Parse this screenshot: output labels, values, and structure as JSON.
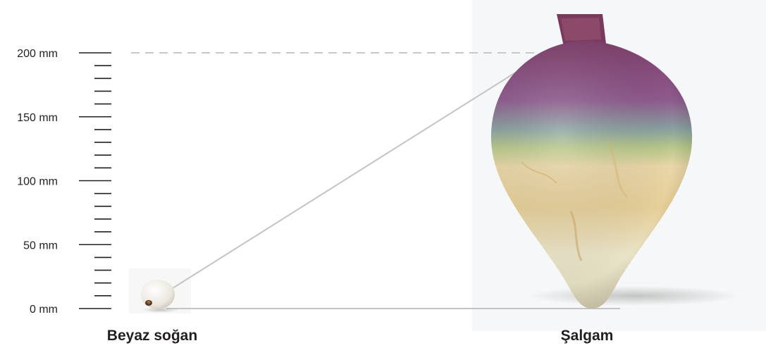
{
  "scale": {
    "unit": "mm",
    "min": 0,
    "max": 200,
    "major_step": 50,
    "minor_step": 10,
    "labels": [
      "0 mm",
      "50 mm",
      "100 mm",
      "150 mm",
      "200 mm"
    ]
  },
  "items": [
    {
      "label": "Beyaz soğan",
      "height_mm": 10
    },
    {
      "label": "Şalgam",
      "height_mm": 200
    }
  ],
  "colors": {
    "axis": "#231f20",
    "dashed_guide": "#c8c8c8",
    "connector": "#c4c4c4",
    "turnip_purple": "#8a4a78",
    "turnip_cream": "#e8d9b0",
    "onion_white": "#f2efe9"
  }
}
